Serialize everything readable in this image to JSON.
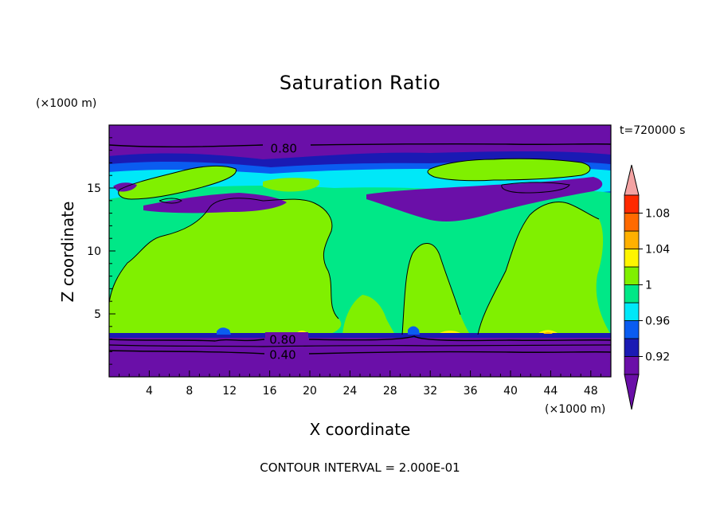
{
  "chart_data": {
    "type": "heatmap",
    "title": "Saturation Ratio",
    "xlabel": "X coordinate",
    "ylabel": "Z coordinate",
    "x_unit": "(×1000 m)",
    "y_unit": "(×1000 m)",
    "time_label": "t=720000 s",
    "footnote": "CONTOUR INTERVAL = 2.000E-01",
    "xlim": [
      0,
      50
    ],
    "ylim": [
      0,
      20
    ],
    "x_ticks": [
      4,
      8,
      12,
      16,
      20,
      24,
      28,
      32,
      36,
      40,
      44,
      48
    ],
    "y_ticks": [
      5,
      10,
      15
    ],
    "contour_labels": [
      {
        "text": "0.80",
        "x": 17.4,
        "y": 18.2
      },
      {
        "text": "0.80",
        "x": 17.3,
        "y": 3.0
      },
      {
        "text": "0.40",
        "x": 17.3,
        "y": 1.8
      }
    ],
    "colorbar": {
      "ticks": [
        "1.08",
        "1.04",
        "1",
        "0.96",
        "0.92"
      ],
      "levels": [
        0.9,
        0.92,
        0.94,
        0.96,
        0.98,
        1.0,
        1.02,
        1.04,
        1.06,
        1.08,
        1.1
      ],
      "colors": [
        "#6a0fa8",
        "#1a1ab4",
        "#0a5cf0",
        "#00e8f8",
        "#00e887",
        "#80f000",
        "#fff500",
        "#ffb000",
        "#ff6a00",
        "#ff2a00"
      ],
      "under_color": "#6a0fa8",
      "over_color": "#f4a3a3"
    },
    "bands": [
      {
        "level": "<0.90",
        "color": "#6a0fa8",
        "z_range": [
          0,
          3.3
        ]
      },
      {
        "level": "1.00-1.02",
        "color": "#80f000",
        "z_range": [
          3.5,
          13.5
        ]
      },
      {
        "level": "0.98-1.00",
        "color": "#00e887",
        "z_range": [
          3.5,
          14.5
        ]
      },
      {
        "level": "<0.90",
        "color": "#6a0fa8",
        "z_range": [
          18.0,
          20.0
        ]
      }
    ]
  }
}
